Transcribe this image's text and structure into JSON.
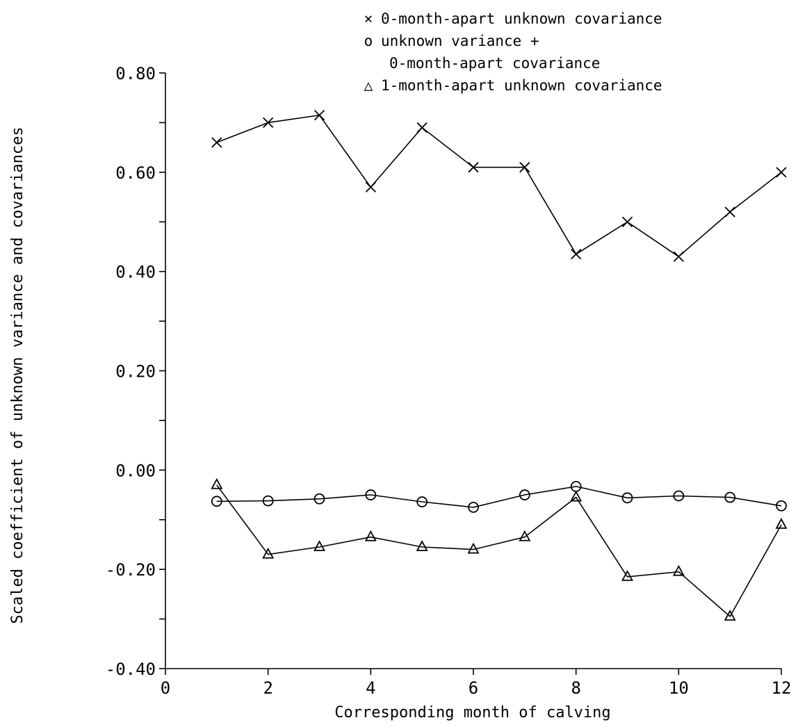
{
  "chart_data": {
    "type": "line",
    "xlabel": "Corresponding month of calving",
    "ylabel": "Scaled coefficient of unknown variance and covariances",
    "xlim": [
      0,
      12
    ],
    "ylim": [
      -0.4,
      0.8
    ],
    "x_ticks": [
      0,
      2,
      4,
      6,
      8,
      10,
      12
    ],
    "x_tick_labels": [
      "0",
      "2",
      "4",
      "6",
      "8",
      "10",
      "12"
    ],
    "y_ticks": [
      -0.4,
      -0.3,
      -0.2,
      -0.1,
      0.0,
      0.1,
      0.2,
      0.3,
      0.4,
      0.5,
      0.6,
      0.7,
      0.8
    ],
    "y_tick_labels": [
      "-0.40",
      "",
      "-0.20",
      "",
      "0.00",
      "",
      "0.20",
      "",
      "0.40",
      "",
      "0.60",
      "",
      "0.80"
    ],
    "grid": false,
    "legend_position": "top-right",
    "series": [
      {
        "name": "0-month-apart unknown covariance",
        "marker": "x",
        "x": [
          1,
          2,
          3,
          4,
          5,
          6,
          7,
          8,
          9,
          10,
          11,
          12
        ],
        "y": [
          0.66,
          0.7,
          0.715,
          0.57,
          0.69,
          0.61,
          0.61,
          0.435,
          0.5,
          0.43,
          0.52,
          0.6
        ]
      },
      {
        "name": "unknown variance + 0-month-apart covariance",
        "marker": "circle",
        "x": [
          1,
          2,
          3,
          4,
          5,
          6,
          7,
          8,
          9,
          10,
          11,
          12
        ],
        "y": [
          -0.063,
          -0.062,
          -0.058,
          -0.05,
          -0.064,
          -0.075,
          -0.05,
          -0.033,
          -0.056,
          -0.052,
          -0.055,
          -0.072
        ]
      },
      {
        "name": "1-month-apart unknown covariance",
        "marker": "triangle",
        "x": [
          1,
          2,
          3,
          4,
          5,
          6,
          7,
          8,
          9,
          10,
          11,
          12
        ],
        "y": [
          -0.03,
          -0.17,
          -0.155,
          -0.135,
          -0.155,
          -0.16,
          -0.135,
          -0.055,
          -0.215,
          -0.205,
          -0.295,
          -0.11
        ]
      }
    ],
    "legend": [
      {
        "symbol": "×",
        "lines": [
          "0-month-apart unknown covariance"
        ]
      },
      {
        "symbol": "o",
        "lines": [
          "unknown variance +",
          "0-month-apart covariance"
        ]
      },
      {
        "symbol": "△",
        "lines": [
          "1-month-apart unknown covariance"
        ]
      }
    ]
  }
}
